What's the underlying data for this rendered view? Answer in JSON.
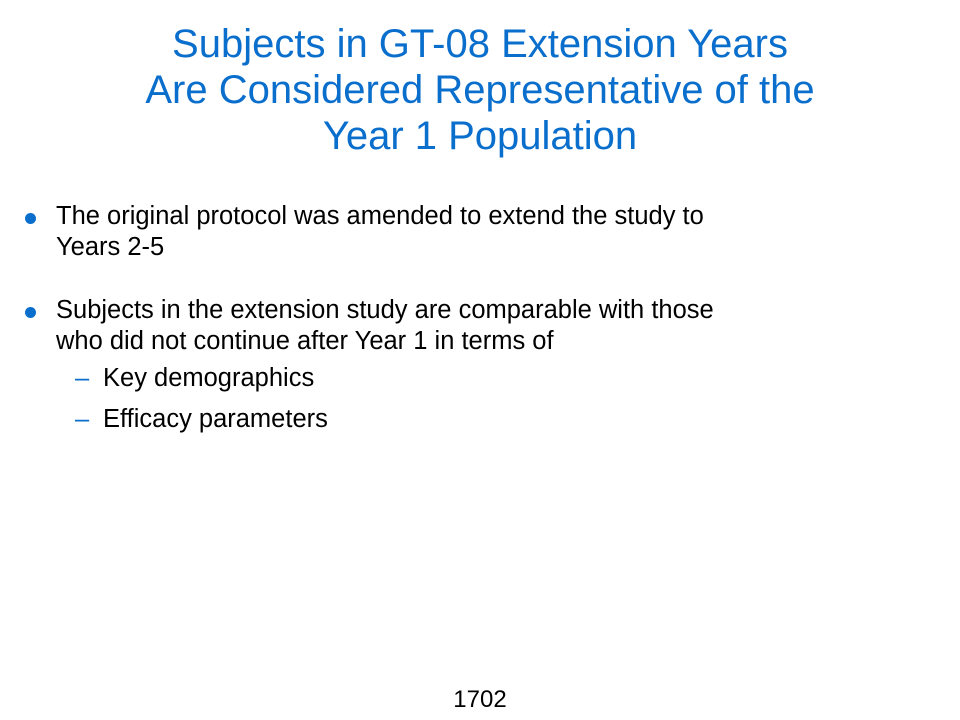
{
  "slide": {
    "title_lines": [
      "Subjects in GT-08 Extension Years",
      "Are Considered Representative of the",
      "Year 1 Population"
    ],
    "bullets": [
      {
        "lines": [
          "The original protocol was amended to extend the study to",
          "Years 2-5"
        ]
      },
      {
        "lines": [
          "Subjects in the extension study are comparable with those",
          "who did not continue after Year 1 in terms of"
        ],
        "sub_bullets": [
          {
            "dash": "–",
            "text": "Key demographics"
          },
          {
            "dash": "–",
            "text": "Efficacy parameters"
          }
        ]
      }
    ],
    "page_number": "1702"
  },
  "colors": {
    "title": "#0a6ecc",
    "bullet_marker": "#0a6ecc",
    "body_text": "#000000",
    "background": "#ffffff"
  }
}
